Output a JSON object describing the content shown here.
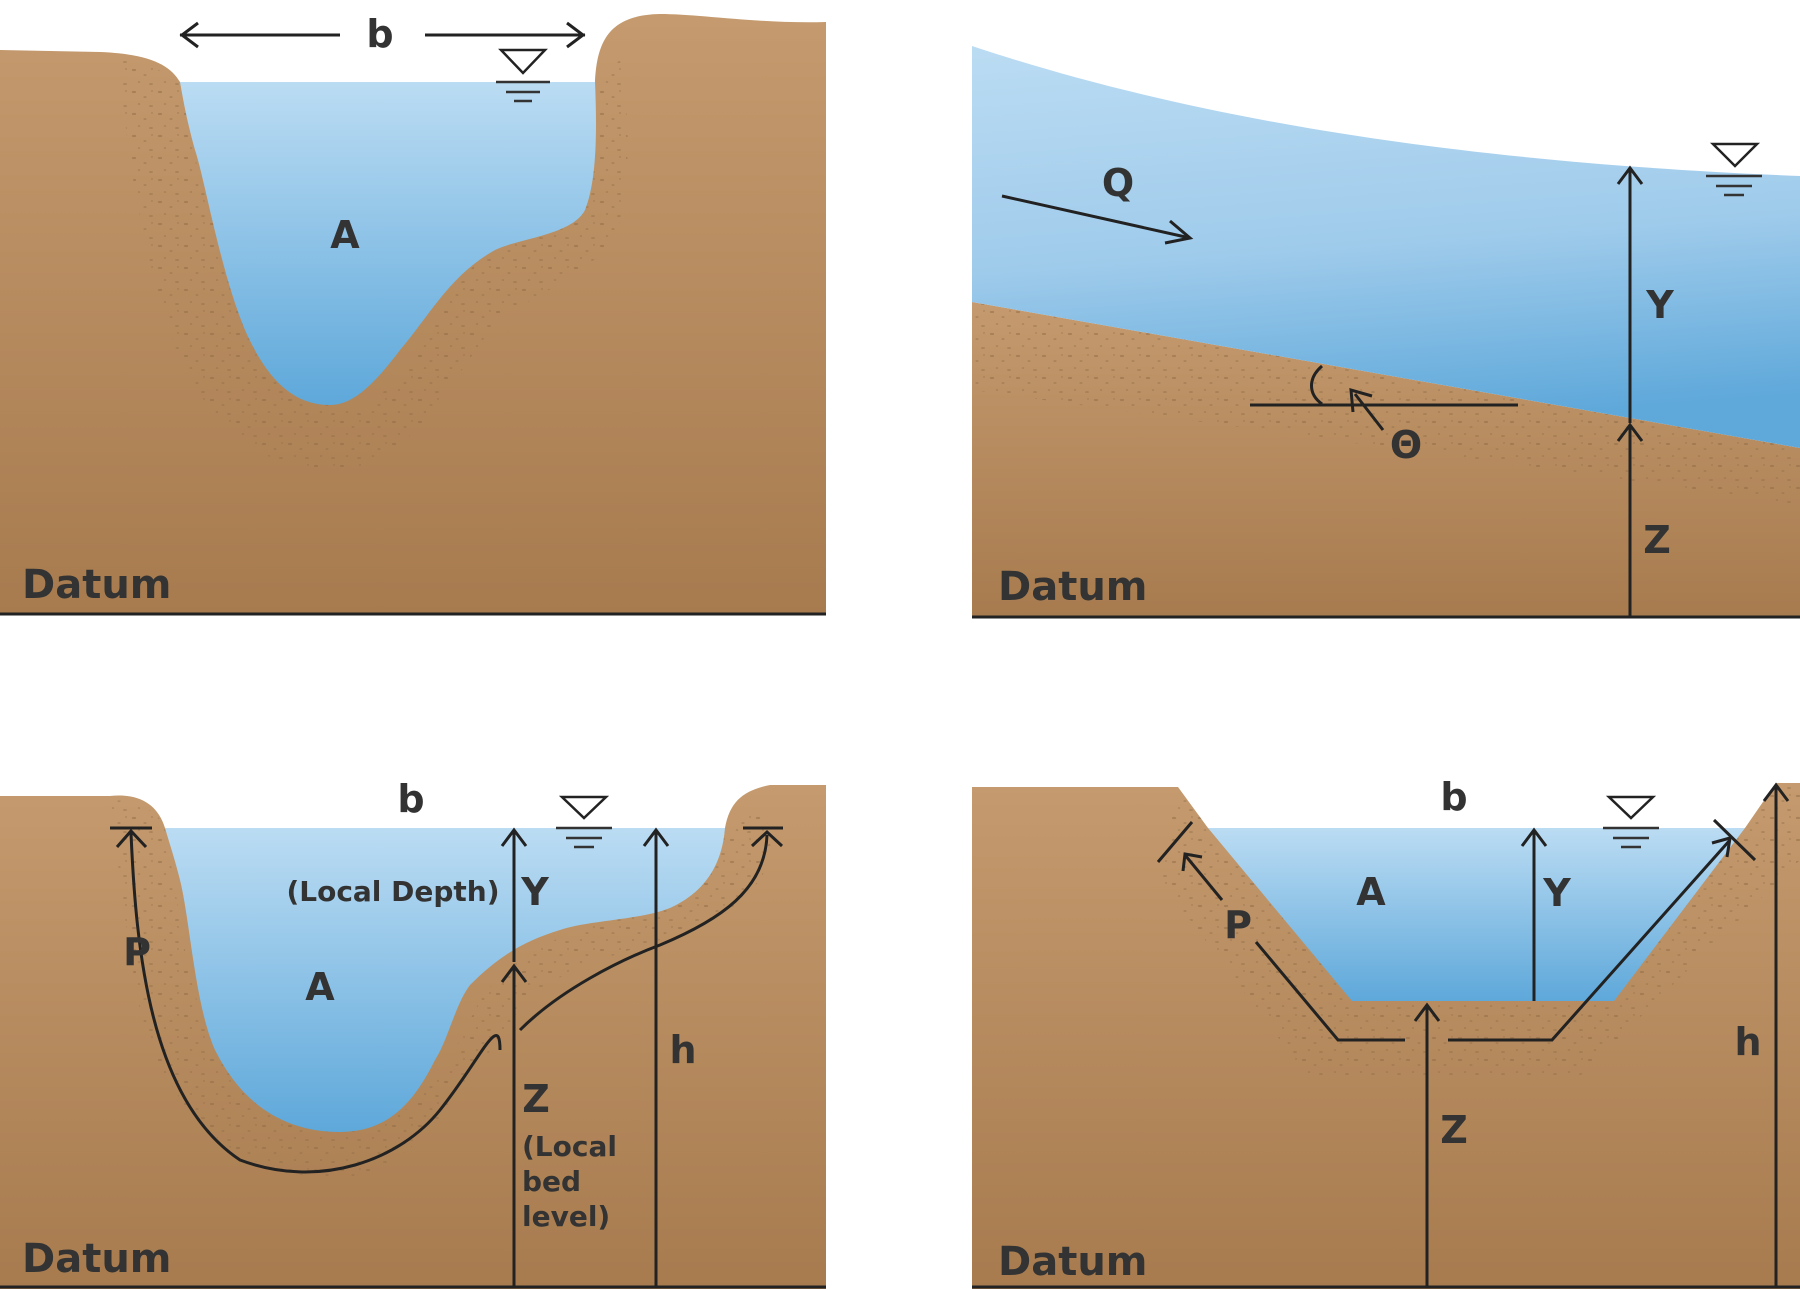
{
  "colors": {
    "soil_top": "#C49A6E",
    "soil_bottom": "#A77B4E",
    "soil_band": "#B58A5C",
    "soil_dot": "#8E6A45",
    "water_top": "#BBDCF3",
    "water_bottom": "#5EA8DA",
    "line": "#222222",
    "text": "#333333"
  },
  "icons": [
    "water-surface-symbol-icon",
    "arrow-icon"
  ],
  "panel_top_left": {
    "label_b": "b",
    "label_A": "A",
    "datum": "Datum"
  },
  "panel_top_right": {
    "label_Q": "Q",
    "label_Y": "Y",
    "label_Z": "Z",
    "label_theta": "Θ",
    "datum": "Datum"
  },
  "panel_bottom_left": {
    "label_b": "b",
    "label_local_depth": "(Local Depth)",
    "label_Y": "Y",
    "label_P": "P",
    "label_A": "A",
    "label_h": "h",
    "label_Z": "Z",
    "label_local_bed_1": "(Local",
    "label_local_bed_2": "bed",
    "label_local_bed_3": "level)",
    "datum": "Datum"
  },
  "panel_bottom_right": {
    "label_b": "b",
    "label_A": "A",
    "label_Y": "Y",
    "label_P": "P",
    "label_h": "h",
    "label_Z": "Z",
    "datum": "Datum"
  }
}
